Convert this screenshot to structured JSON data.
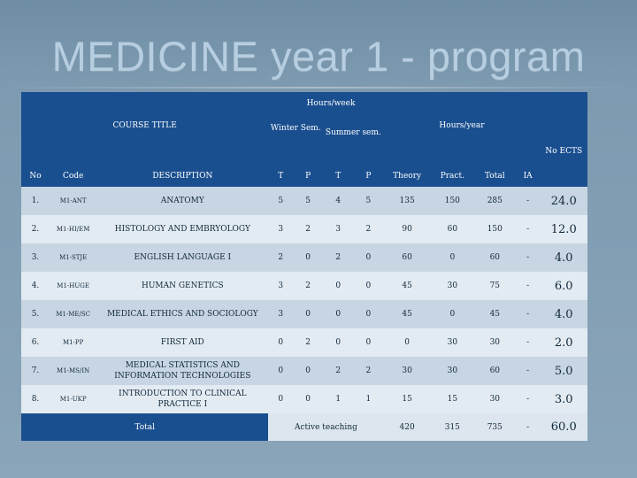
{
  "title": "MEDICINE year 1 - program",
  "headers": {
    "hours_week": "Hours/week",
    "course_title": "COURSE TITLE",
    "winter_sem": "Winter Sem.",
    "summer_sem": "Summer sem.",
    "hours_year": "Hours/year",
    "no_ects": "No ECTS",
    "no": "No",
    "code": "Code",
    "description": "DESCRIPTION",
    "t1": "T",
    "p1": "P",
    "t2": "T",
    "p2": "P",
    "theory": "Theory",
    "pract": "Pract.",
    "total": "Total",
    "ia": "IA"
  },
  "rows": [
    {
      "no": "1.",
      "code": "M1-ANT",
      "desc": "ANATOMY",
      "wt": "5",
      "wp": "5",
      "st": "4",
      "sp": "5",
      "theory": "135",
      "pract": "150",
      "total": "285",
      "ia": "-",
      "ects": "24.0"
    },
    {
      "no": "2.",
      "code": "M1-HI/EM",
      "desc": "HISTOLOGY AND EMBRYOLOGY",
      "wt": "3",
      "wp": "2",
      "st": "3",
      "sp": "2",
      "theory": "90",
      "pract": "60",
      "total": "150",
      "ia": "-",
      "ects": "12.0"
    },
    {
      "no": "3.",
      "code": "M1-STJE",
      "desc": "ENGLISH LANGUAGE I",
      "wt": "2",
      "wp": "0",
      "st": "2",
      "sp": "0",
      "theory": "60",
      "pract": "0",
      "total": "60",
      "ia": "-",
      "ects": "4.0"
    },
    {
      "no": "4.",
      "code": "M1-HUGE",
      "desc": "HUMAN GENETICS",
      "wt": "3",
      "wp": "2",
      "st": "0",
      "sp": "0",
      "theory": "45",
      "pract": "30",
      "total": "75",
      "ia": "-",
      "ects": "6.0"
    },
    {
      "no": "5.",
      "code": "M1-ME/SC",
      "desc": "MEDICAL ETHICS AND SOCIOLOGY",
      "wt": "3",
      "wp": "0",
      "st": "0",
      "sp": "0",
      "theory": "45",
      "pract": "0",
      "total": "45",
      "ia": "-",
      "ects": "4.0"
    },
    {
      "no": "6.",
      "code": "M1-PP",
      "desc": "FIRST AID",
      "wt": "0",
      "wp": "2",
      "st": "0",
      "sp": "0",
      "theory": "0",
      "pract": "30",
      "total": "30",
      "ia": "-",
      "ects": "2.0"
    },
    {
      "no": "7.",
      "code": "M1-MS/IN",
      "desc": "MEDICAL STATISTICS AND INFORMATION TECHNOLOGIES",
      "wt": "0",
      "wp": "0",
      "st": "2",
      "sp": "2",
      "theory": "30",
      "pract": "30",
      "total": "60",
      "ia": "-",
      "ects": "5.0"
    },
    {
      "no": "8.",
      "code": "M1-UKP",
      "desc": "INTRODUCTION TO CLINICAL PRACTICE I",
      "wt": "0",
      "wp": "0",
      "st": "1",
      "sp": "1",
      "theory": "15",
      "pract": "15",
      "total": "30",
      "ia": "-",
      "ects": "3.0"
    }
  ],
  "totals": {
    "label": "Total",
    "active": "Active teaching",
    "theory": "420",
    "pract": "315",
    "total": "735",
    "ia": "-",
    "ects": "60.0"
  }
}
